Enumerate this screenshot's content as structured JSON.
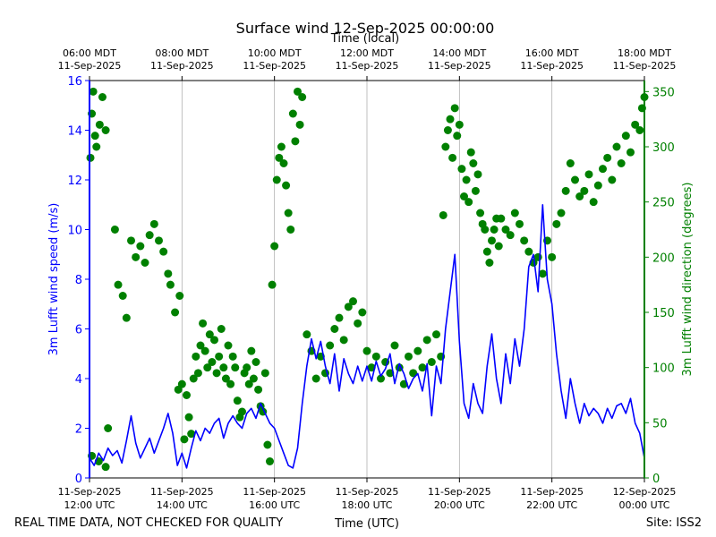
{
  "chart_data": {
    "type": "line+scatter",
    "title": "Surface wind 12-Sep-2025 00:00:00",
    "xlabel": "Time (UTC)",
    "xlabel_top": "Time (local)",
    "ylabel_left": "3m Lufft wind speed (m/s)",
    "ylabel_right": "3m Lufft wind direction (degrees)",
    "footer_left": "REAL TIME DATA, NOT CHECKED FOR QUALITY",
    "footer_right": "Site: ISS2",
    "x_range_hours_utc": [
      12,
      24
    ],
    "ylim_left": [
      0,
      16
    ],
    "ylim_right": [
      0,
      360
    ],
    "left_ticks": [
      "0",
      "2",
      "4",
      "6",
      "8",
      "10",
      "12",
      "14",
      "16"
    ],
    "right_ticks": [
      "0",
      "50",
      "100",
      "150",
      "200",
      "250",
      "300",
      "350"
    ],
    "bottom_ticks": [
      {
        "hour": 12,
        "line1": "11-Sep-2025",
        "line2": "12:00 UTC"
      },
      {
        "hour": 14,
        "line1": "11-Sep-2025",
        "line2": "14:00 UTC"
      },
      {
        "hour": 16,
        "line1": "11-Sep-2025",
        "line2": "16:00 UTC"
      },
      {
        "hour": 18,
        "line1": "11-Sep-2025",
        "line2": "18:00 UTC"
      },
      {
        "hour": 20,
        "line1": "11-Sep-2025",
        "line2": "20:00 UTC"
      },
      {
        "hour": 22,
        "line1": "11-Sep-2025",
        "line2": "22:00 UTC"
      },
      {
        "hour": 24,
        "line1": "12-Sep-2025",
        "line2": "00:00 UTC"
      }
    ],
    "top_ticks": [
      {
        "hour": 12,
        "line1": "06:00 MDT",
        "line2": "11-Sep-2025"
      },
      {
        "hour": 14,
        "line1": "08:00 MDT",
        "line2": "11-Sep-2025"
      },
      {
        "hour": 16,
        "line1": "10:00 MDT",
        "line2": "11-Sep-2025"
      },
      {
        "hour": 18,
        "line1": "12:00 MDT",
        "line2": "11-Sep-2025"
      },
      {
        "hour": 20,
        "line1": "14:00 MDT",
        "line2": "11-Sep-2025"
      },
      {
        "hour": 22,
        "line1": "16:00 MDT",
        "line2": "11-Sep-2025"
      },
      {
        "hour": 24,
        "line1": "18:00 MDT",
        "line2": "11-Sep-2025"
      }
    ],
    "colors": {
      "speed": "#0000ff",
      "direction": "#008000",
      "grid": "#b0b0b0",
      "axis": "#000000"
    },
    "series": [
      {
        "name": "3m Lufft wind speed (m/s)",
        "kind": "line",
        "points": [
          [
            12.0,
            0.8
          ],
          [
            12.1,
            0.5
          ],
          [
            12.2,
            1.0
          ],
          [
            12.3,
            0.7
          ],
          [
            12.4,
            1.2
          ],
          [
            12.5,
            0.9
          ],
          [
            12.6,
            1.1
          ],
          [
            12.7,
            0.6
          ],
          [
            12.8,
            1.5
          ],
          [
            12.9,
            2.5
          ],
          [
            13.0,
            1.4
          ],
          [
            13.1,
            0.8
          ],
          [
            13.2,
            1.2
          ],
          [
            13.3,
            1.6
          ],
          [
            13.4,
            1.0
          ],
          [
            13.5,
            1.5
          ],
          [
            13.6,
            2.0
          ],
          [
            13.7,
            2.6
          ],
          [
            13.8,
            1.8
          ],
          [
            13.9,
            0.5
          ],
          [
            14.0,
            1.0
          ],
          [
            14.1,
            0.4
          ],
          [
            14.2,
            1.2
          ],
          [
            14.3,
            1.9
          ],
          [
            14.4,
            1.5
          ],
          [
            14.5,
            2.0
          ],
          [
            14.6,
            1.8
          ],
          [
            14.7,
            2.2
          ],
          [
            14.8,
            2.4
          ],
          [
            14.9,
            1.6
          ],
          [
            15.0,
            2.2
          ],
          [
            15.1,
            2.5
          ],
          [
            15.2,
            2.2
          ],
          [
            15.3,
            2.0
          ],
          [
            15.4,
            2.6
          ],
          [
            15.5,
            2.8
          ],
          [
            15.6,
            2.4
          ],
          [
            15.7,
            3.0
          ],
          [
            15.8,
            2.6
          ],
          [
            15.9,
            2.2
          ],
          [
            16.0,
            2.0
          ],
          [
            16.1,
            1.5
          ],
          [
            16.2,
            1.0
          ],
          [
            16.3,
            0.5
          ],
          [
            16.4,
            0.4
          ],
          [
            16.5,
            1.2
          ],
          [
            16.6,
            3.0
          ],
          [
            16.7,
            4.5
          ],
          [
            16.8,
            5.6
          ],
          [
            16.9,
            4.8
          ],
          [
            17.0,
            5.5
          ],
          [
            17.1,
            4.5
          ],
          [
            17.2,
            3.8
          ],
          [
            17.3,
            5.0
          ],
          [
            17.4,
            3.5
          ],
          [
            17.5,
            4.8
          ],
          [
            17.6,
            4.2
          ],
          [
            17.7,
            3.8
          ],
          [
            17.8,
            4.5
          ],
          [
            17.9,
            3.9
          ],
          [
            18.0,
            4.5
          ],
          [
            18.1,
            3.9
          ],
          [
            18.2,
            4.7
          ],
          [
            18.3,
            4.1
          ],
          [
            18.4,
            4.4
          ],
          [
            18.5,
            5.0
          ],
          [
            18.6,
            3.8
          ],
          [
            18.7,
            4.6
          ],
          [
            18.8,
            4.2
          ],
          [
            18.9,
            3.6
          ],
          [
            19.0,
            4.0
          ],
          [
            19.1,
            4.2
          ],
          [
            19.2,
            3.5
          ],
          [
            19.3,
            4.6
          ],
          [
            19.4,
            2.5
          ],
          [
            19.5,
            4.5
          ],
          [
            19.6,
            3.8
          ],
          [
            19.7,
            6.0
          ],
          [
            19.8,
            7.5
          ],
          [
            19.9,
            9.0
          ],
          [
            20.0,
            5.5
          ],
          [
            20.1,
            3.0
          ],
          [
            20.2,
            2.4
          ],
          [
            20.3,
            3.8
          ],
          [
            20.4,
            3.0
          ],
          [
            20.5,
            2.6
          ],
          [
            20.6,
            4.5
          ],
          [
            20.7,
            5.8
          ],
          [
            20.8,
            4.0
          ],
          [
            20.9,
            3.0
          ],
          [
            21.0,
            5.0
          ],
          [
            21.1,
            3.8
          ],
          [
            21.2,
            5.6
          ],
          [
            21.3,
            4.5
          ],
          [
            21.4,
            6.0
          ],
          [
            21.5,
            8.5
          ],
          [
            21.6,
            9.0
          ],
          [
            21.7,
            7.5
          ],
          [
            21.8,
            11.0
          ],
          [
            21.9,
            8.0
          ],
          [
            22.0,
            7.0
          ],
          [
            22.1,
            5.0
          ],
          [
            22.2,
            3.5
          ],
          [
            22.3,
            2.4
          ],
          [
            22.4,
            4.0
          ],
          [
            22.5,
            3.0
          ],
          [
            22.6,
            2.2
          ],
          [
            22.7,
            3.0
          ],
          [
            22.8,
            2.5
          ],
          [
            22.9,
            2.8
          ],
          [
            23.0,
            2.6
          ],
          [
            23.1,
            2.2
          ],
          [
            23.2,
            2.8
          ],
          [
            23.3,
            2.4
          ],
          [
            23.4,
            2.9
          ],
          [
            23.5,
            3.0
          ],
          [
            23.6,
            2.6
          ],
          [
            23.7,
            3.2
          ],
          [
            23.8,
            2.2
          ],
          [
            23.9,
            1.8
          ],
          [
            24.0,
            0.8
          ]
        ]
      },
      {
        "name": "3m Lufft wind direction (degrees)",
        "kind": "scatter",
        "points": [
          [
            12.02,
            290
          ],
          [
            12.05,
            330
          ],
          [
            12.08,
            350
          ],
          [
            12.12,
            310
          ],
          [
            12.15,
            300
          ],
          [
            12.22,
            320
          ],
          [
            12.28,
            345
          ],
          [
            12.35,
            315
          ],
          [
            12.05,
            20
          ],
          [
            12.2,
            15
          ],
          [
            12.35,
            10
          ],
          [
            12.4,
            45
          ],
          [
            12.55,
            225
          ],
          [
            12.62,
            175
          ],
          [
            12.72,
            165
          ],
          [
            12.8,
            145
          ],
          [
            12.9,
            215
          ],
          [
            13.0,
            200
          ],
          [
            13.1,
            210
          ],
          [
            13.2,
            195
          ],
          [
            13.3,
            220
          ],
          [
            13.4,
            230
          ],
          [
            13.5,
            215
          ],
          [
            13.6,
            205
          ],
          [
            13.7,
            185
          ],
          [
            13.75,
            175
          ],
          [
            13.85,
            150
          ],
          [
            13.92,
            80
          ],
          [
            13.95,
            165
          ],
          [
            14.0,
            85
          ],
          [
            14.05,
            35
          ],
          [
            14.1,
            75
          ],
          [
            14.15,
            55
          ],
          [
            14.2,
            40
          ],
          [
            14.25,
            90
          ],
          [
            14.3,
            110
          ],
          [
            14.35,
            95
          ],
          [
            14.4,
            120
          ],
          [
            14.45,
            140
          ],
          [
            14.5,
            115
          ],
          [
            14.55,
            100
          ],
          [
            14.6,
            130
          ],
          [
            14.65,
            105
          ],
          [
            14.7,
            125
          ],
          [
            14.75,
            95
          ],
          [
            14.8,
            110
          ],
          [
            14.85,
            135
          ],
          [
            14.9,
            100
          ],
          [
            14.95,
            90
          ],
          [
            15.0,
            120
          ],
          [
            15.05,
            85
          ],
          [
            15.1,
            110
          ],
          [
            15.15,
            100
          ],
          [
            15.2,
            70
          ],
          [
            15.25,
            55
          ],
          [
            15.3,
            60
          ],
          [
            15.35,
            95
          ],
          [
            15.4,
            100
          ],
          [
            15.45,
            85
          ],
          [
            15.5,
            115
          ],
          [
            15.55,
            90
          ],
          [
            15.6,
            105
          ],
          [
            15.65,
            80
          ],
          [
            15.7,
            65
          ],
          [
            15.75,
            60
          ],
          [
            15.8,
            95
          ],
          [
            15.85,
            30
          ],
          [
            15.9,
            15
          ],
          [
            15.95,
            175
          ],
          [
            16.0,
            210
          ],
          [
            16.05,
            270
          ],
          [
            16.1,
            290
          ],
          [
            16.15,
            300
          ],
          [
            16.2,
            285
          ],
          [
            16.25,
            265
          ],
          [
            16.3,
            240
          ],
          [
            16.35,
            225
          ],
          [
            16.4,
            330
          ],
          [
            16.45,
            305
          ],
          [
            16.5,
            350
          ],
          [
            16.55,
            320
          ],
          [
            16.6,
            345
          ],
          [
            16.7,
            130
          ],
          [
            16.8,
            115
          ],
          [
            16.9,
            90
          ],
          [
            17.0,
            110
          ],
          [
            17.1,
            95
          ],
          [
            17.2,
            120
          ],
          [
            17.3,
            135
          ],
          [
            17.4,
            145
          ],
          [
            17.5,
            125
          ],
          [
            17.6,
            155
          ],
          [
            17.7,
            160
          ],
          [
            17.8,
            140
          ],
          [
            17.9,
            150
          ],
          [
            18.0,
            115
          ],
          [
            18.1,
            100
          ],
          [
            18.2,
            110
          ],
          [
            18.3,
            90
          ],
          [
            18.4,
            105
          ],
          [
            18.5,
            95
          ],
          [
            18.6,
            120
          ],
          [
            18.7,
            100
          ],
          [
            18.8,
            85
          ],
          [
            18.9,
            110
          ],
          [
            19.0,
            95
          ],
          [
            19.1,
            115
          ],
          [
            19.2,
            100
          ],
          [
            19.3,
            125
          ],
          [
            19.4,
            105
          ],
          [
            19.5,
            130
          ],
          [
            19.6,
            110
          ],
          [
            19.65,
            238
          ],
          [
            19.7,
            300
          ],
          [
            19.75,
            315
          ],
          [
            19.8,
            325
          ],
          [
            19.85,
            290
          ],
          [
            19.9,
            335
          ],
          [
            19.95,
            310
          ],
          [
            20.0,
            320
          ],
          [
            20.05,
            280
          ],
          [
            20.1,
            255
          ],
          [
            20.15,
            270
          ],
          [
            20.2,
            250
          ],
          [
            20.25,
            295
          ],
          [
            20.3,
            285
          ],
          [
            20.35,
            260
          ],
          [
            20.4,
            275
          ],
          [
            20.45,
            240
          ],
          [
            20.5,
            230
          ],
          [
            20.55,
            225
          ],
          [
            20.6,
            205
          ],
          [
            20.65,
            195
          ],
          [
            20.7,
            215
          ],
          [
            20.75,
            225
          ],
          [
            20.8,
            235
          ],
          [
            20.85,
            210
          ],
          [
            20.9,
            235
          ],
          [
            21.0,
            225
          ],
          [
            21.1,
            220
          ],
          [
            21.2,
            240
          ],
          [
            21.3,
            230
          ],
          [
            21.4,
            215
          ],
          [
            21.5,
            205
          ],
          [
            21.6,
            195
          ],
          [
            21.7,
            200
          ],
          [
            21.8,
            185
          ],
          [
            21.9,
            215
          ],
          [
            22.0,
            200
          ],
          [
            22.1,
            230
          ],
          [
            22.2,
            240
          ],
          [
            22.3,
            260
          ],
          [
            22.4,
            285
          ],
          [
            22.5,
            270
          ],
          [
            22.6,
            255
          ],
          [
            22.7,
            260
          ],
          [
            22.8,
            275
          ],
          [
            22.9,
            250
          ],
          [
            23.0,
            265
          ],
          [
            23.1,
            280
          ],
          [
            23.2,
            290
          ],
          [
            23.3,
            270
          ],
          [
            23.4,
            300
          ],
          [
            23.5,
            285
          ],
          [
            23.6,
            310
          ],
          [
            23.7,
            295
          ],
          [
            23.8,
            320
          ],
          [
            23.9,
            315
          ],
          [
            23.95,
            335
          ],
          [
            24.0,
            345
          ]
        ]
      }
    ]
  }
}
